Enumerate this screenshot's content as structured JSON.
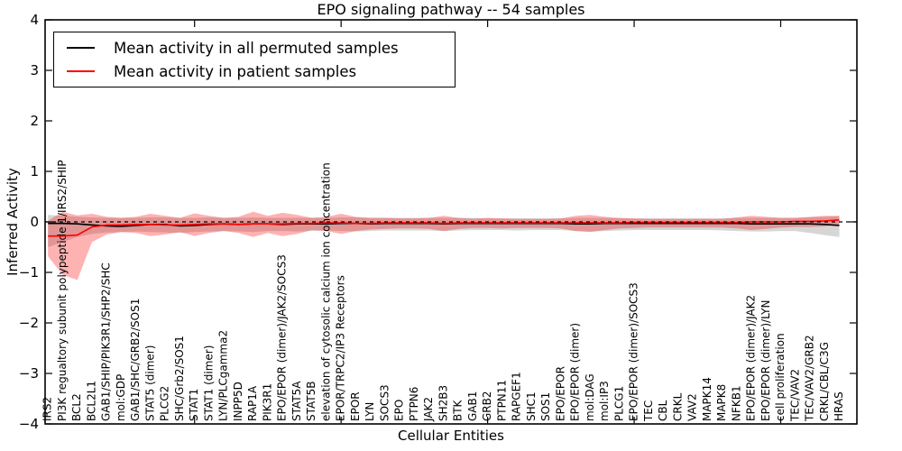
{
  "chart_data": {
    "type": "line",
    "title": "EPO signaling pathway -- 54 samples",
    "xlabel": "Cellular Entities",
    "ylabel": "Inferred Activity",
    "ylim": [
      -4,
      4
    ],
    "yticks": [
      4,
      3,
      2,
      1,
      0,
      -1,
      -2,
      -3,
      -4
    ],
    "ytick_labels": [
      "4",
      "3",
      "2",
      "1",
      "0",
      "−1",
      "−2",
      "−3",
      "−4"
    ],
    "xticks": [
      10,
      20,
      30,
      40,
      50
    ],
    "grid": false,
    "legend_position": "upper left",
    "zero_line": {
      "value": 0,
      "color": "#000000",
      "style": "dashed"
    },
    "categories": [
      "IRS2",
      "PI3K regualtory subunit polypeptide 1/IRS2/SHIP",
      "BCL2",
      "BCL2L1",
      "GAB1/SHIP/PIK3R1/SHP2/SHC",
      "mol:GDP",
      "GAB1/SHC/GRB2/SOS1",
      "STAT5 (dimer)",
      "PLCG2",
      "SHC/Grb2/SOS1",
      "STAT1",
      "STAT1 (dimer)",
      "LYN/PLCgamma2",
      "INPP5D",
      "RAP1A",
      "PIK3R1",
      "EPO/EPOR (dimer)/JAK2/SOCS3",
      "STAT5A",
      "STAT5B",
      "elevation of cytosolic calcium ion concentration",
      "EPOR/TRPC2/IP3 Receptors",
      "EPOR",
      "LYN",
      "SOCS3",
      "EPO",
      "PTPN6",
      "JAK2",
      "SH2B3",
      "BTK",
      "GAB1",
      "GRB2",
      "PTPN11",
      "RAPGEF1",
      "SHC1",
      "SOS1",
      "EPO/EPOR",
      "EPO/EPOR (dimer)",
      "mol:DAG",
      "mol:IP3",
      "PLCG1",
      "EPO/EPOR (dimer)/SOCS3",
      "TEC",
      "CBL",
      "CRKL",
      "VAV2",
      "MAPK14",
      "MAPK8",
      "NFKB1",
      "EPO/EPOR (dimer)/JAK2",
      "EPO/EPOR (dimer)/LYN",
      "cell proliferation",
      "TEC/VAV2",
      "TEC/VAV2/GRB2",
      "CRKL/CBL/C3G",
      "HRAS"
    ],
    "series": [
      {
        "name": "Mean activity in all permuted samples",
        "color": "#000000",
        "values": [
          -0.03,
          -0.03,
          -0.04,
          -0.06,
          -0.08,
          -0.09,
          -0.07,
          -0.05,
          -0.05,
          -0.08,
          -0.07,
          -0.05,
          -0.04,
          -0.05,
          -0.04,
          -0.04,
          -0.05,
          -0.04,
          -0.04,
          -0.04,
          -0.03,
          -0.03,
          -0.04,
          -0.03,
          -0.03,
          -0.03,
          -0.03,
          -0.04,
          -0.03,
          -0.03,
          -0.03,
          -0.03,
          -0.03,
          -0.03,
          -0.03,
          -0.03,
          -0.04,
          -0.04,
          -0.03,
          -0.03,
          -0.03,
          -0.03,
          -0.03,
          -0.03,
          -0.03,
          -0.03,
          -0.03,
          -0.03,
          -0.04,
          -0.04,
          -0.04,
          -0.04,
          -0.04,
          -0.05,
          -0.07
        ],
        "band": {
          "color": "#999999",
          "opacity": 0.4,
          "upper": [
            0.14,
            0.12,
            0.1,
            0.09,
            0.08,
            0.08,
            0.08,
            0.09,
            0.09,
            0.08,
            0.08,
            0.09,
            0.08,
            0.08,
            0.09,
            0.08,
            0.08,
            0.08,
            0.08,
            0.08,
            0.09,
            0.09,
            0.08,
            0.08,
            0.08,
            0.08,
            0.08,
            0.08,
            0.08,
            0.08,
            0.07,
            0.07,
            0.07,
            0.07,
            0.07,
            0.07,
            0.08,
            0.08,
            0.08,
            0.07,
            0.07,
            0.07,
            0.07,
            0.07,
            0.07,
            0.07,
            0.07,
            0.08,
            0.08,
            0.08,
            0.08,
            0.08,
            0.09,
            0.1,
            0.11
          ],
          "lower": [
            -0.5,
            -0.4,
            -0.3,
            -0.24,
            -0.21,
            -0.2,
            -0.19,
            -0.2,
            -0.21,
            -0.22,
            -0.2,
            -0.19,
            -0.18,
            -0.19,
            -0.2,
            -0.18,
            -0.18,
            -0.19,
            -0.18,
            -0.17,
            -0.18,
            -0.19,
            -0.18,
            -0.17,
            -0.17,
            -0.17,
            -0.17,
            -0.18,
            -0.17,
            -0.16,
            -0.16,
            -0.16,
            -0.17,
            -0.16,
            -0.16,
            -0.16,
            -0.18,
            -0.19,
            -0.18,
            -0.17,
            -0.16,
            -0.16,
            -0.16,
            -0.16,
            -0.16,
            -0.16,
            -0.17,
            -0.18,
            -0.19,
            -0.19,
            -0.18,
            -0.18,
            -0.22,
            -0.26,
            -0.3
          ]
        }
      },
      {
        "name": "Mean activity in patient samples",
        "color": "#ff0000",
        "values": [
          -0.28,
          -0.28,
          -0.26,
          -0.1,
          -0.06,
          -0.06,
          -0.05,
          -0.05,
          -0.06,
          -0.06,
          -0.05,
          -0.04,
          -0.04,
          -0.05,
          -0.04,
          -0.04,
          -0.04,
          -0.03,
          -0.03,
          -0.02,
          -0.02,
          -0.03,
          -0.03,
          -0.02,
          -0.02,
          -0.02,
          -0.02,
          -0.03,
          -0.02,
          -0.02,
          -0.02,
          -0.02,
          -0.02,
          -0.02,
          -0.02,
          -0.02,
          -0.02,
          -0.02,
          -0.02,
          -0.02,
          -0.01,
          -0.01,
          -0.01,
          -0.01,
          -0.01,
          -0.01,
          -0.01,
          -0.01,
          0.0,
          0.0,
          0.0,
          0.01,
          0.01,
          0.02,
          0.04
        ],
        "band": {
          "color": "#ff0000",
          "opacity": 0.3,
          "upper": [
            0.02,
            0.2,
            0.13,
            0.16,
            0.1,
            0.08,
            0.1,
            0.16,
            0.12,
            0.08,
            0.17,
            0.12,
            0.08,
            0.1,
            0.2,
            0.12,
            0.18,
            0.14,
            0.08,
            0.1,
            0.16,
            0.1,
            0.08,
            0.08,
            0.07,
            0.07,
            0.08,
            0.12,
            0.08,
            0.06,
            0.08,
            0.07,
            0.06,
            0.06,
            0.06,
            0.07,
            0.12,
            0.14,
            0.1,
            0.08,
            0.07,
            0.06,
            0.06,
            0.06,
            0.06,
            0.06,
            0.06,
            0.09,
            0.12,
            0.1,
            0.08,
            0.08,
            0.1,
            0.12,
            0.12
          ],
          "lower": [
            -0.68,
            -1.05,
            -1.15,
            -0.4,
            -0.25,
            -0.2,
            -0.22,
            -0.28,
            -0.25,
            -0.2,
            -0.28,
            -0.22,
            -0.18,
            -0.22,
            -0.3,
            -0.22,
            -0.28,
            -0.24,
            -0.16,
            -0.18,
            -0.24,
            -0.18,
            -0.15,
            -0.14,
            -0.13,
            -0.13,
            -0.14,
            -0.18,
            -0.14,
            -0.12,
            -0.12,
            -0.13,
            -0.12,
            -0.12,
            -0.12,
            -0.13,
            -0.18,
            -0.2,
            -0.16,
            -0.13,
            -0.12,
            -0.11,
            -0.11,
            -0.11,
            -0.11,
            -0.11,
            -0.11,
            -0.13,
            -0.16,
            -0.14,
            -0.11,
            -0.1,
            -0.1,
            -0.09,
            -0.05
          ]
        }
      }
    ]
  }
}
